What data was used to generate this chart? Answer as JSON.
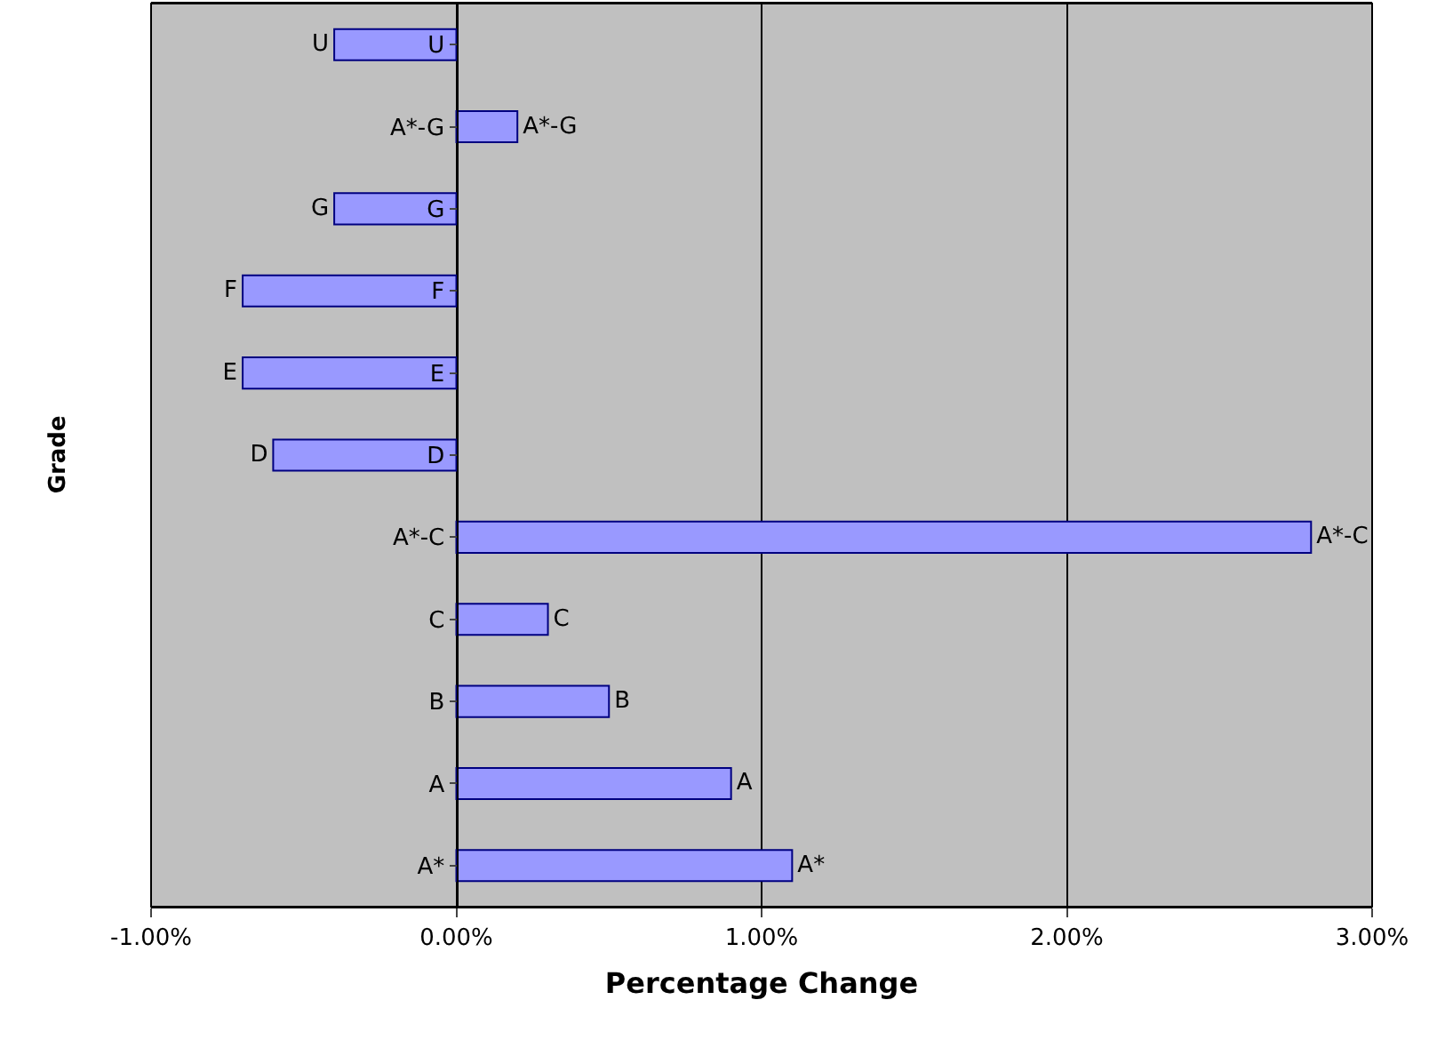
{
  "chart_data": {
    "type": "bar",
    "orientation": "horizontal",
    "xlabel": "Percentage Change",
    "ylabel": "Grade",
    "categories": [
      "U",
      "A*-G",
      "G",
      "F",
      "E",
      "D",
      "A*-C",
      "C",
      "B",
      "A",
      "A*"
    ],
    "values": [
      -0.4,
      0.2,
      -0.4,
      -0.7,
      -0.7,
      -0.6,
      2.8,
      0.3,
      0.5,
      0.9,
      1.1
    ],
    "value_labels": [
      "U",
      "A*-G",
      "G",
      "F",
      "E",
      "D",
      "A*-C",
      "C",
      "B",
      "A",
      "A*"
    ],
    "color": "#9999ff",
    "xlim": [
      -1,
      3
    ],
    "xticks": [
      {
        "value": -1,
        "label": "-1.00%"
      },
      {
        "value": 0,
        "label": "0.00%"
      },
      {
        "value": 1,
        "label": "1.00%"
      },
      {
        "value": 2,
        "label": "2.00%"
      },
      {
        "value": 3,
        "label": "3.00%"
      }
    ],
    "grid": "x"
  }
}
